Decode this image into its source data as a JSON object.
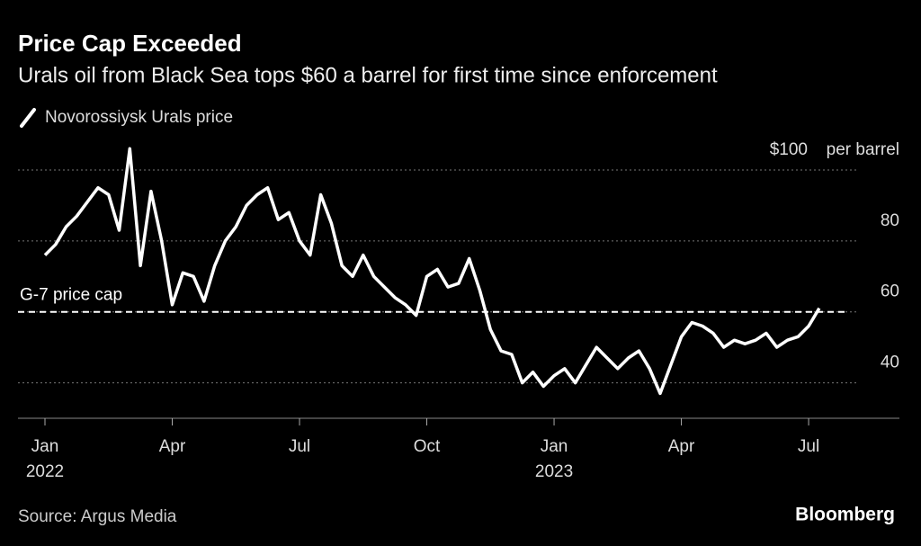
{
  "chart_data": {
    "type": "line",
    "title": "Price Cap Exceeded",
    "subtitle": "Urals oil from Black Sea tops $60 a barrel for first time since enforcement",
    "y_unit": "per barrel",
    "source": "Source: Argus Media",
    "brand": "Bloomberg",
    "reference_line": {
      "label": "G-7 price cap",
      "value": 60
    },
    "x": [
      "2022-01",
      "2022-01",
      "2022-01",
      "2022-01",
      "2022-02",
      "2022-02",
      "2022-02",
      "2022-02",
      "2022-03",
      "2022-03",
      "2022-03",
      "2022-03",
      "2022-04",
      "2022-04",
      "2022-04",
      "2022-04",
      "2022-05",
      "2022-05",
      "2022-05",
      "2022-05",
      "2022-06",
      "2022-06",
      "2022-06",
      "2022-06",
      "2022-07",
      "2022-07",
      "2022-07",
      "2022-07",
      "2022-08",
      "2022-08",
      "2022-08",
      "2022-08",
      "2022-09",
      "2022-09",
      "2022-09",
      "2022-09",
      "2022-10",
      "2022-10",
      "2022-10",
      "2022-10",
      "2022-11",
      "2022-11",
      "2022-11",
      "2022-11",
      "2022-12",
      "2022-12",
      "2022-12",
      "2022-12",
      "2023-01",
      "2023-01",
      "2023-01",
      "2023-01",
      "2023-02",
      "2023-02",
      "2023-02",
      "2023-02",
      "2023-03",
      "2023-03",
      "2023-03",
      "2023-03",
      "2023-04",
      "2023-04",
      "2023-04",
      "2023-04",
      "2023-05",
      "2023-05",
      "2023-05",
      "2023-05",
      "2023-06",
      "2023-06",
      "2023-06",
      "2023-06",
      "2023-07",
      "2023-07"
    ],
    "series": [
      {
        "name": "Novorossiysk Urals price",
        "color": "#ffffff",
        "values": [
          76,
          79,
          84,
          87,
          91,
          95,
          93,
          83,
          106,
          73,
          94,
          80,
          62,
          71,
          70,
          63,
          73,
          80,
          84,
          90,
          93,
          95,
          86,
          88,
          80,
          76,
          93,
          85,
          73,
          70,
          76,
          70,
          67,
          64,
          62,
          59,
          70,
          72,
          67,
          68,
          75,
          66,
          55,
          49,
          48,
          40,
          43,
          39,
          42,
          44,
          40,
          45,
          50,
          47,
          44,
          47,
          49,
          44,
          37,
          45,
          53,
          57,
          56,
          54,
          50,
          52,
          51,
          52,
          54,
          50,
          52,
          53,
          56,
          61
        ]
      }
    ],
    "xticks": [
      {
        "value": "2022-01",
        "label": "Jan"
      },
      {
        "value": "2022-04",
        "label": "Apr"
      },
      {
        "value": "2022-07",
        "label": "Jul"
      },
      {
        "value": "2022-10",
        "label": "Oct"
      },
      {
        "value": "2023-01",
        "label": "Jan"
      },
      {
        "value": "2023-04",
        "label": "Apr"
      },
      {
        "value": "2023-07",
        "label": "Jul"
      }
    ],
    "x_year_labels": [
      {
        "value": "2022-01",
        "label": "2022"
      },
      {
        "value": "2023-01",
        "label": "2023"
      }
    ],
    "ylim": [
      30,
      110
    ],
    "yticks": [
      40,
      60,
      80,
      {
        "value": 100,
        "label": "$100"
      }
    ],
    "grid": true
  }
}
